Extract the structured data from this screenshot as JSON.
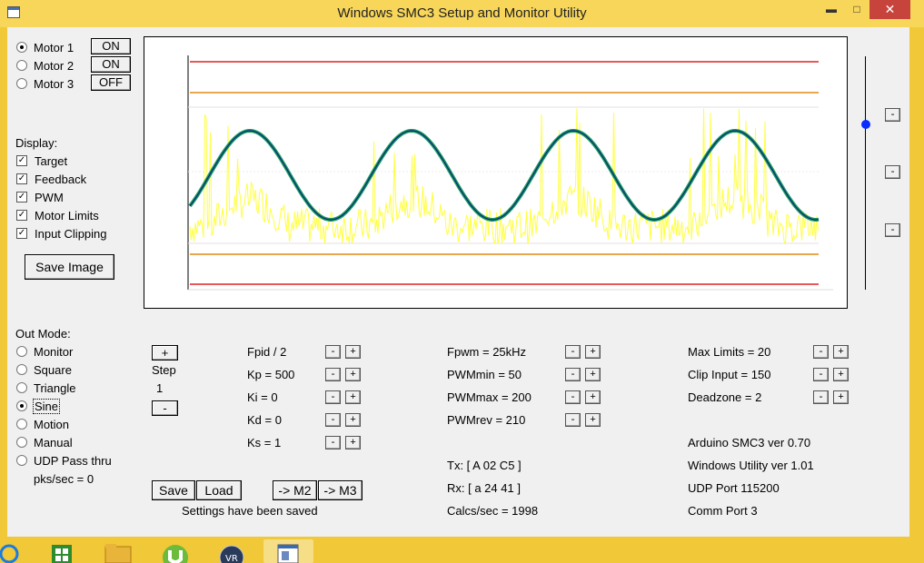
{
  "window": {
    "title": "Windows SMC3 Setup and Monitor Utility",
    "minimize_glyph": "▬",
    "maximize_glyph": "□",
    "close_glyph": "✕"
  },
  "motors": [
    {
      "label": "Motor 1",
      "state": "ON",
      "selected": true
    },
    {
      "label": "Motor 2",
      "state": "ON",
      "selected": false
    },
    {
      "label": "Motor 3",
      "state": "OFF",
      "selected": false
    }
  ],
  "display": {
    "heading": "Display:",
    "items": [
      "Target",
      "Feedback",
      "PWM",
      "Motor Limits",
      "Input Clipping"
    ],
    "check_glyph": "✓",
    "save_image": "Save Image"
  },
  "slider": {
    "buttons": [
      "-",
      "-",
      "-"
    ],
    "level": 0.29
  },
  "out_mode": {
    "heading": "Out Mode:",
    "options": [
      "Monitor",
      "Square",
      "Triangle",
      "Sine",
      "Motion",
      "Manual",
      "UDP Pass thru"
    ],
    "selected_index": 3,
    "pks": "pks/sec = 0"
  },
  "step": {
    "plus": "+",
    "label": "Step",
    "value": "1",
    "minus": "-"
  },
  "pid_params": [
    "Fpid / 2",
    "Kp = 500",
    "Ki = 0",
    "Kd = 0",
    "Ks = 1"
  ],
  "pwm_params": [
    "Fpwm = 25kHz",
    "PWMmin = 50",
    "PWMmax = 200",
    "PWMrev = 210"
  ],
  "limit_params": [
    "Max Limits = 20",
    "Clip Input = 150",
    "Deadzone = 2"
  ],
  "adjust": {
    "minus": "-",
    "plus": "+"
  },
  "comm": {
    "tx": "Tx: [ A 02 C5 ]",
    "rx": "Rx: [ a 24 41 ]",
    "calcs": "Calcs/sec = 1998"
  },
  "info": [
    "Arduino SMC3 ver 0.70",
    "Windows Utility ver 1.01",
    "UDP Port 115200",
    "Comm Port 3"
  ],
  "actions": {
    "save": "Save",
    "load": "Load",
    "to_m2": "-> M2",
    "to_m3": "-> M3",
    "status": "Settings have been saved"
  },
  "colors": {
    "motor_limit": "#e02020",
    "clip_limit": "#e08a10",
    "pwm": "#ffff40",
    "target": "#1a9a60",
    "feedback": "#0a2a7a",
    "slider_knob": "#0a2cff"
  },
  "taskbar": [
    "internet-explorer-icon",
    "store-icon",
    "file-explorer-icon",
    "utorrent-icon",
    "vr-app-icon",
    "smc3-app-icon"
  ]
}
